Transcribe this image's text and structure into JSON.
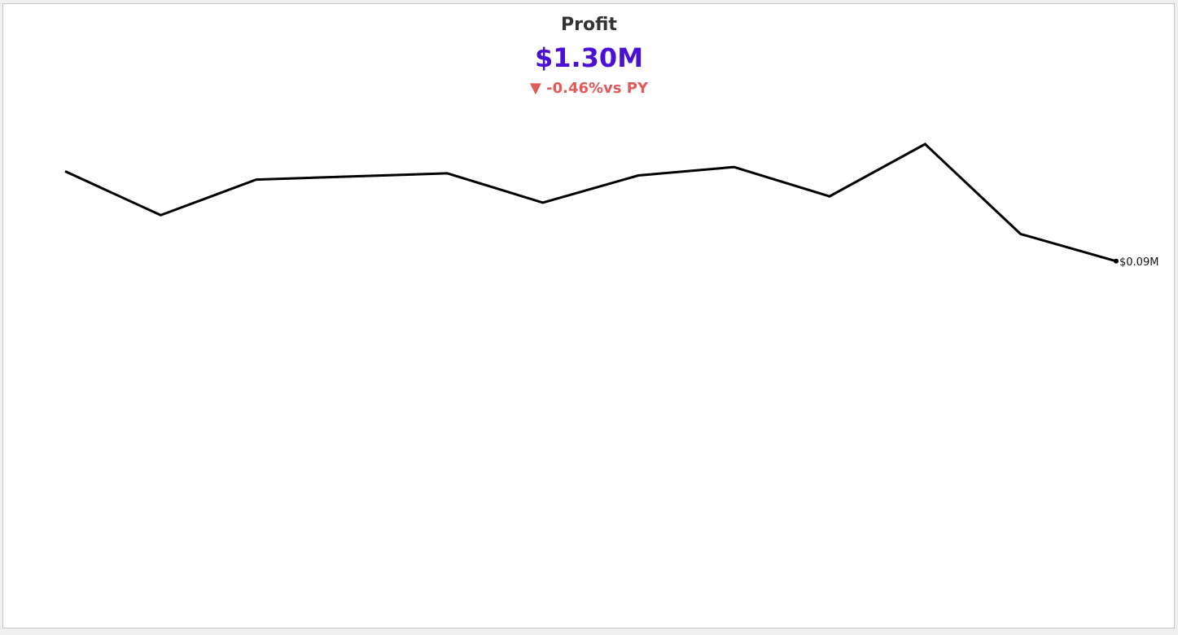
{
  "kpi": {
    "title": "Profit",
    "value": "$1.30M",
    "change_arrow": "▼",
    "change_value": "-0.46%",
    "change_suffix": "vs PY",
    "value_color": "#4b10d6",
    "change_color": "#e05a5a"
  },
  "chart_data": {
    "type": "line",
    "title": "",
    "xlabel": "",
    "ylabel": "",
    "grid": false,
    "legend": "none",
    "line_color": "#000000",
    "x": [
      1,
      2,
      3,
      4,
      5,
      6,
      7,
      8,
      9,
      10,
      11,
      12
    ],
    "values": [
      0.133,
      0.112,
      0.129,
      null,
      0.132,
      0.118,
      0.131,
      0.135,
      0.121,
      0.146,
      0.103,
      0.09
    ],
    "y_range": [
      0.0,
      0.16
    ],
    "last_point_label": "$0.09M"
  }
}
